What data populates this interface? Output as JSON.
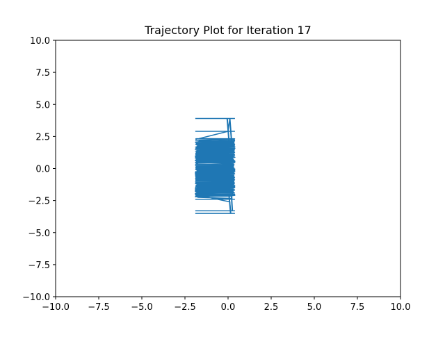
{
  "chart_data": {
    "type": "line",
    "title": "Trajectory Plot for Iteration 17",
    "xlabel": "",
    "ylabel": "",
    "xlim": [
      -10,
      10
    ],
    "ylim": [
      -10,
      10
    ],
    "xticks": [
      -10.0,
      -7.5,
      -5.0,
      -2.5,
      0.0,
      2.5,
      5.0,
      7.5,
      10.0
    ],
    "yticks": [
      -10.0,
      -7.5,
      -5.0,
      -2.5,
      0.0,
      2.5,
      5.0,
      7.5,
      10.0
    ],
    "xtick_labels": [
      "−10.0",
      "−7.5",
      "−5.0",
      "−2.5",
      "0.0",
      "2.5",
      "5.0",
      "7.5",
      "10.0"
    ],
    "ytick_labels": [
      "−10.0",
      "−7.5",
      "−5.0",
      "−2.5",
      "0.0",
      "2.5",
      "5.0",
      "7.5",
      "10.0"
    ],
    "grid": false,
    "legend": false,
    "series": [
      {
        "color": "#1f77b4",
        "x_range": [
          -1.9,
          0.4
        ],
        "y_range": [
          -3.5,
          3.9
        ],
        "dense_band": {
          "x": [
            -1.9,
            0.4
          ],
          "y": [
            -2.2,
            2.2
          ]
        },
        "sparse_sweeps_y": [
          3.9,
          2.9,
          2.2,
          -2.0,
          -2.4,
          -3.3,
          -3.5
        ]
      }
    ]
  }
}
